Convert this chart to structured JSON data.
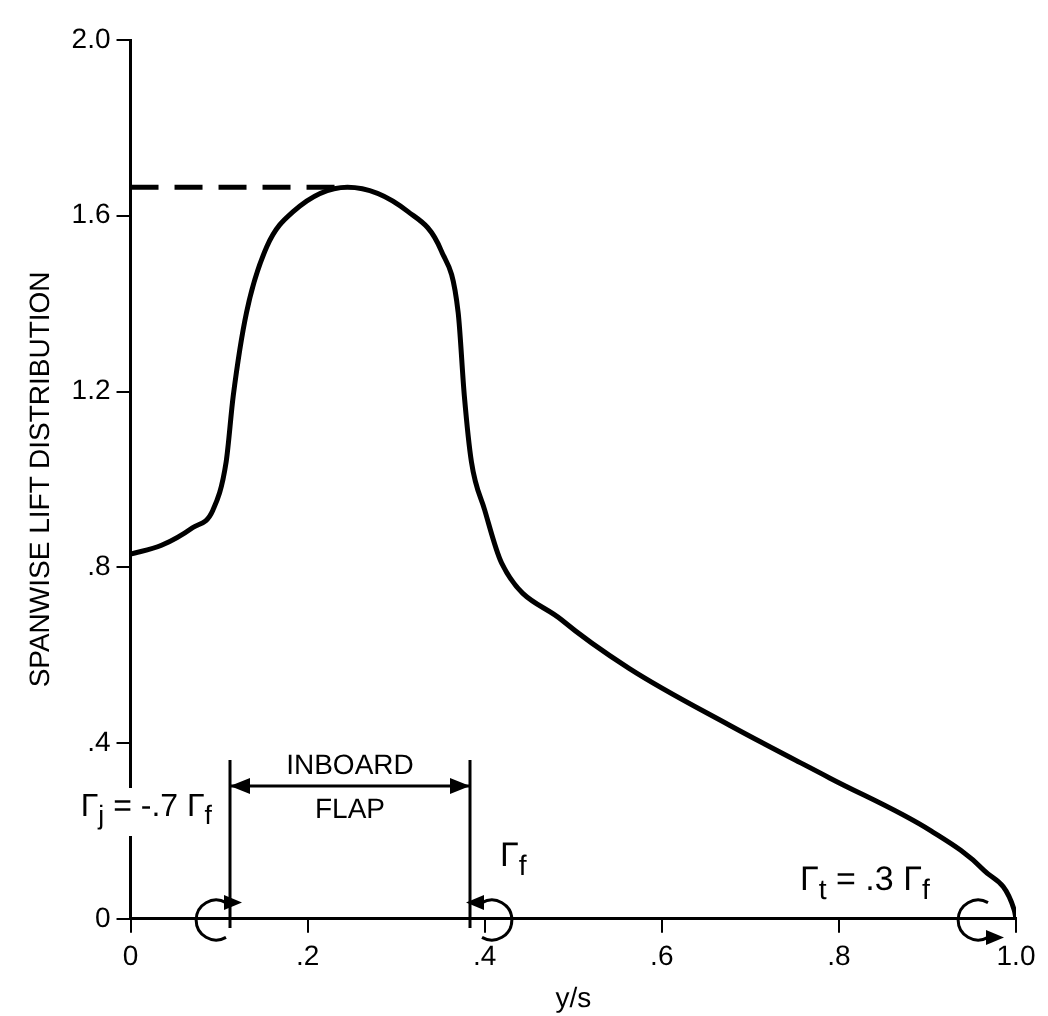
{
  "chart_data": {
    "type": "line",
    "xlabel": "y/s",
    "ylabel": "SPANWISE LIFT DISTRIBUTION",
    "xlim": [
      0,
      1
    ],
    "ylim": [
      0,
      2
    ],
    "xticks": [
      0,
      {
        "value": 0.2,
        "label": ".2"
      },
      {
        "value": 0.4,
        "label": ".4"
      },
      {
        "value": 0.6,
        "label": ".6"
      },
      {
        "value": 0.8,
        "label": ".8"
      },
      {
        "value": 1,
        "label": "1.0"
      }
    ],
    "yticks": [
      0,
      {
        "value": 0.4,
        "label": ".4"
      },
      {
        "value": 0.8,
        "label": ".8"
      },
      1.2,
      1.6,
      {
        "value": 2,
        "label": "2.0"
      }
    ],
    "marker": "none",
    "series": [
      {
        "color": "#000000",
        "line_style": "solid",
        "x": [
          0,
          0.035,
          0.07,
          0.093,
          0.108,
          0.116,
          0.131,
          0.154,
          0.184,
          0.245,
          0.313,
          0.351,
          0.37,
          0.377,
          0.385,
          0.4,
          0.419,
          0.487,
          0.563,
          0.677,
          0.79,
          0.904,
          0.964,
          0.998,
          1
        ],
        "values": [
          0.83,
          0.85,
          0.89,
          0.93,
          1.04,
          1.19,
          1.38,
          1.53,
          1.61,
          1.665,
          1.61,
          1.52,
          1.38,
          1.19,
          1.04,
          0.93,
          0.81,
          0.68,
          0.57,
          0.44,
          0.32,
          0.2,
          0.11,
          0.02,
          0
        ]
      },
      {
        "color": "#000000",
        "line_style": "dashed",
        "x": [
          0,
          0.245
        ],
        "values": [
          1.665,
          1.665
        ]
      }
    ],
    "annotations": [
      "Γ$_{j}$ = -.7 Γ$_{f}$",
      "INBOARD FLAP",
      "Γ$_{f}$",
      "Γ$_{t}$ = .3 Γ$_{f}$"
    ]
  }
}
